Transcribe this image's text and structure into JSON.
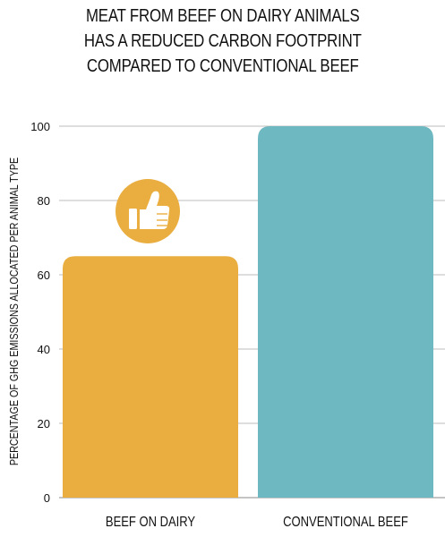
{
  "title_lines": [
    "MEAT FROM BEEF ON DAIRY ANIMALS",
    "HAS A REDUCED CARBON FOOTPRINT",
    "COMPARED TO CONVENTIONAL BEEF"
  ],
  "colors": {
    "beef_on_dairy": "#E9AE3F",
    "conventional_beef": "#6DB8C1",
    "grid": "#bdbdbd",
    "icon_fg": "#ffffff"
  },
  "icon": {
    "name": "thumbs-up-icon",
    "attached_to": "BEEF ON DAIRY"
  },
  "chart_data": {
    "type": "bar",
    "title": "MEAT FROM BEEF ON DAIRY ANIMALS HAS A REDUCED CARBON FOOTPRINT COMPARED TO CONVENTIONAL BEEF",
    "categories": [
      "BEEF ON DAIRY",
      "CONVENTIONAL BEEF"
    ],
    "values": [
      65,
      100
    ],
    "xlabel": "",
    "ylabel": "PERCENTAGE OF GHG EMISSIONS ALLOCATED PER ANIMAL TYPE",
    "ylim": [
      0,
      100
    ],
    "yticks": [
      0,
      20,
      40,
      60,
      80,
      100
    ],
    "grid": true,
    "legend": "none"
  }
}
